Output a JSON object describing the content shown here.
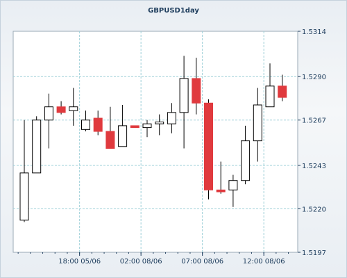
{
  "chart_data": {
    "type": "candlestick",
    "title": "GBPUSD1day",
    "y_ticks": [
      "1.5314",
      "1.5290",
      "1.5267",
      "1.5243",
      "1.5220",
      "1.5197"
    ],
    "ylim": [
      1.5197,
      1.5314
    ],
    "x_ticks": [
      {
        "label": "18:00 05/06",
        "index": 4.5
      },
      {
        "label": "02:00 08/06",
        "index": 9.5
      },
      {
        "label": "07:00 08/06",
        "index": 14.5
      },
      {
        "label": "12:00 08/06",
        "index": 19.5
      }
    ],
    "grid": true,
    "colors": {
      "up_fill": "#ffffff",
      "down_fill": "#e03a3e",
      "wick": "#000000",
      "grid": "#9fd0d8"
    },
    "candles": [
      {
        "open": 1.5214,
        "high": 1.5267,
        "low": 1.5213,
        "close": 1.5239
      },
      {
        "open": 1.5239,
        "high": 1.5269,
        "low": 1.5239,
        "close": 1.5267
      },
      {
        "open": 1.5267,
        "high": 1.5281,
        "low": 1.5252,
        "close": 1.5274
      },
      {
        "open": 1.5274,
        "high": 1.5277,
        "low": 1.527,
        "close": 1.5271
      },
      {
        "open": 1.5272,
        "high": 1.5284,
        "low": 1.5264,
        "close": 1.5274
      },
      {
        "open": 1.5262,
        "high": 1.5272,
        "low": 1.5261,
        "close": 1.5267
      },
      {
        "open": 1.5268,
        "high": 1.5272,
        "low": 1.5259,
        "close": 1.5261
      },
      {
        "open": 1.5261,
        "high": 1.5274,
        "low": 1.5252,
        "close": 1.5252
      },
      {
        "open": 1.5253,
        "high": 1.5275,
        "low": 1.5253,
        "close": 1.5264
      },
      {
        "open": 1.5264,
        "high": 1.5264,
        "low": 1.5263,
        "close": 1.5263
      },
      {
        "open": 1.5263,
        "high": 1.5267,
        "low": 1.5258,
        "close": 1.5265
      },
      {
        "open": 1.5265,
        "high": 1.527,
        "low": 1.5259,
        "close": 1.5266
      },
      {
        "open": 1.5265,
        "high": 1.5276,
        "low": 1.526,
        "close": 1.5271
      },
      {
        "open": 1.5271,
        "high": 1.5301,
        "low": 1.5252,
        "close": 1.5289
      },
      {
        "open": 1.5289,
        "high": 1.53,
        "low": 1.527,
        "close": 1.5276
      },
      {
        "open": 1.5276,
        "high": 1.5278,
        "low": 1.5225,
        "close": 1.523
      },
      {
        "open": 1.523,
        "high": 1.5245,
        "low": 1.5228,
        "close": 1.5229
      },
      {
        "open": 1.523,
        "high": 1.5238,
        "low": 1.5221,
        "close": 1.5235
      },
      {
        "open": 1.5235,
        "high": 1.5264,
        "low": 1.5233,
        "close": 1.5256
      },
      {
        "open": 1.5256,
        "high": 1.5284,
        "low": 1.5245,
        "close": 1.5275
      },
      {
        "open": 1.5274,
        "high": 1.5297,
        "low": 1.5274,
        "close": 1.5285
      },
      {
        "open": 1.5285,
        "high": 1.5291,
        "low": 1.5277,
        "close": 1.5279
      }
    ]
  }
}
